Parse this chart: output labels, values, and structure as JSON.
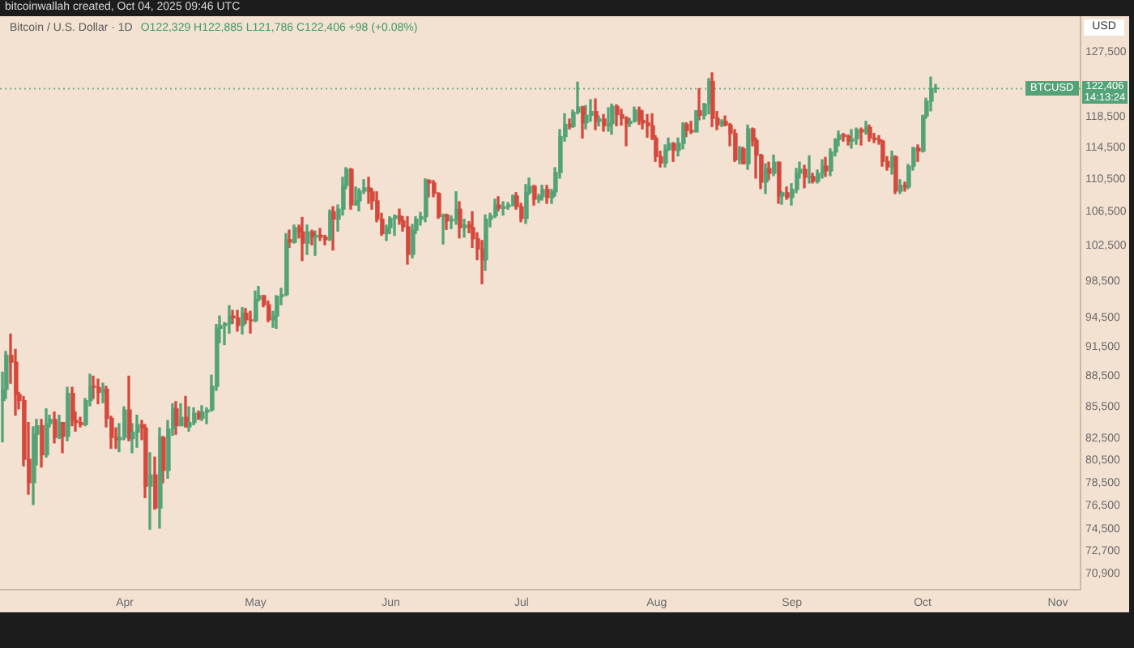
{
  "chart_data": {
    "type": "candlestick",
    "title": "Bitcoin / U.S. Dollar · 1D",
    "subtitle": "O122,329 H122,885 L121,786 C122,406 +98 (+0.08%)",
    "ylabel": "USD",
    "annotations": [
      "bitcoinwallah created, Oct 04, 2025 09:46 UTC",
      {
        "text": "BTCUSD",
        "y": 122406
      },
      "14:13:24"
    ],
    "log": "y",
    "xlim": [
      "2025-03-03T09:00",
      "2025-11-06T05:00"
    ],
    "xticks": [
      {
        "value": "2025-04-01",
        "label": "Apr"
      },
      {
        "value": "2025-05-01",
        "label": "May"
      },
      {
        "value": "2025-06-01",
        "label": "Jun"
      },
      {
        "value": "2025-07-01",
        "label": "Jul"
      },
      {
        "value": "2025-08-01",
        "label": "Aug"
      },
      {
        "value": "2025-09-01",
        "label": "Sep"
      },
      {
        "value": "2025-10-01",
        "label": "Oct"
      },
      {
        "value": "2025-11-01",
        "label": "Nov"
      }
    ],
    "ylim": [
      69600,
      132700
    ],
    "yticks": [
      {
        "value": 70900,
        "label": "70,900"
      },
      {
        "value": 72700,
        "label": "72,700"
      },
      {
        "value": 74500,
        "label": "74,500"
      },
      {
        "value": 76500,
        "label": "76,500"
      },
      {
        "value": 78500,
        "label": "78,500"
      },
      {
        "value": 80500,
        "label": "80,500"
      },
      {
        "value": 82500,
        "label": "82,500"
      },
      {
        "value": 85500,
        "label": "85,500"
      },
      {
        "value": 88500,
        "label": "88,500"
      },
      {
        "value": 91500,
        "label": "91,500"
      },
      {
        "value": 94500,
        "label": "94,500"
      },
      {
        "value": 98500,
        "label": "98,500"
      },
      {
        "value": 102500,
        "label": "102,500"
      },
      {
        "value": 106500,
        "label": "106,500"
      },
      {
        "value": 110500,
        "label": "110,500"
      },
      {
        "value": 114500,
        "label": "114,500"
      },
      {
        "value": 118500,
        "label": "118,500"
      },
      {
        "value": 127500,
        "label": "127,500"
      }
    ],
    "ref_lines": [
      {
        "axis": "y",
        "value": 122406,
        "label": "122,406",
        "color": "#54a377",
        "line_style": "dotted"
      }
    ],
    "x": [
      "2025-03-04",
      "2025-03-05",
      "2025-03-06",
      "2025-03-07",
      "2025-03-08",
      "2025-03-09",
      "2025-03-10",
      "2025-03-11",
      "2025-03-12",
      "2025-03-13",
      "2025-03-14",
      "2025-03-15",
      "2025-03-16",
      "2025-03-17",
      "2025-03-18",
      "2025-03-19",
      "2025-03-20",
      "2025-03-21",
      "2025-03-22",
      "2025-03-23",
      "2025-03-24",
      "2025-03-25",
      "2025-03-26",
      "2025-03-27",
      "2025-03-28",
      "2025-03-29",
      "2025-03-30",
      "2025-03-31",
      "2025-04-01",
      "2025-04-02",
      "2025-04-03",
      "2025-04-04",
      "2025-04-05",
      "2025-04-06",
      "2025-04-07",
      "2025-04-08",
      "2025-04-09",
      "2025-04-10",
      "2025-04-11",
      "2025-04-12",
      "2025-04-13",
      "2025-04-14",
      "2025-04-15",
      "2025-04-16",
      "2025-04-17",
      "2025-04-18",
      "2025-04-19",
      "2025-04-20",
      "2025-04-21",
      "2025-04-22",
      "2025-04-23",
      "2025-04-24",
      "2025-04-25",
      "2025-04-26",
      "2025-04-27",
      "2025-04-28",
      "2025-04-29",
      "2025-04-30",
      "2025-05-01",
      "2025-05-02",
      "2025-05-03",
      "2025-05-04",
      "2025-05-05",
      "2025-05-06",
      "2025-05-07",
      "2025-05-08",
      "2025-05-09",
      "2025-05-10",
      "2025-05-11",
      "2025-05-12",
      "2025-05-13",
      "2025-05-14",
      "2025-05-15",
      "2025-05-16",
      "2025-05-17",
      "2025-05-18",
      "2025-05-19",
      "2025-05-20",
      "2025-05-21",
      "2025-05-22",
      "2025-05-23",
      "2025-05-24",
      "2025-05-25",
      "2025-05-26",
      "2025-05-27",
      "2025-05-28",
      "2025-05-29",
      "2025-05-30",
      "2025-05-31",
      "2025-06-01",
      "2025-06-02",
      "2025-06-03",
      "2025-06-04",
      "2025-06-05",
      "2025-06-06",
      "2025-06-07",
      "2025-06-08",
      "2025-06-09",
      "2025-06-10",
      "2025-06-11",
      "2025-06-12",
      "2025-06-13",
      "2025-06-14",
      "2025-06-15",
      "2025-06-16",
      "2025-06-17",
      "2025-06-18",
      "2025-06-19",
      "2025-06-20",
      "2025-06-21",
      "2025-06-22",
      "2025-06-23",
      "2025-06-24",
      "2025-06-25",
      "2025-06-26",
      "2025-06-27",
      "2025-06-28",
      "2025-06-29",
      "2025-06-30",
      "2025-07-01",
      "2025-07-02",
      "2025-07-03",
      "2025-07-04",
      "2025-07-05",
      "2025-07-06",
      "2025-07-07",
      "2025-07-08",
      "2025-07-09",
      "2025-07-10",
      "2025-07-11",
      "2025-07-12",
      "2025-07-13",
      "2025-07-14",
      "2025-07-15",
      "2025-07-16",
      "2025-07-17",
      "2025-07-18",
      "2025-07-19",
      "2025-07-20",
      "2025-07-21",
      "2025-07-22",
      "2025-07-23",
      "2025-07-24",
      "2025-07-25",
      "2025-07-26",
      "2025-07-27",
      "2025-07-28",
      "2025-07-29",
      "2025-07-30",
      "2025-07-31",
      "2025-08-01",
      "2025-08-02",
      "2025-08-03",
      "2025-08-04",
      "2025-08-05",
      "2025-08-06",
      "2025-08-07",
      "2025-08-08",
      "2025-08-09",
      "2025-08-10",
      "2025-08-11",
      "2025-08-12",
      "2025-08-13",
      "2025-08-14",
      "2025-08-15",
      "2025-08-16",
      "2025-08-17",
      "2025-08-18",
      "2025-08-19",
      "2025-08-20",
      "2025-08-21",
      "2025-08-22",
      "2025-08-23",
      "2025-08-24",
      "2025-08-25",
      "2025-08-26",
      "2025-08-27",
      "2025-08-28",
      "2025-08-29",
      "2025-08-30",
      "2025-08-31",
      "2025-09-01",
      "2025-09-02",
      "2025-09-03",
      "2025-09-04",
      "2025-09-05",
      "2025-09-06",
      "2025-09-07",
      "2025-09-08",
      "2025-09-09",
      "2025-09-10",
      "2025-09-11",
      "2025-09-12",
      "2025-09-13",
      "2025-09-14",
      "2025-09-15",
      "2025-09-16",
      "2025-09-17",
      "2025-09-18",
      "2025-09-19",
      "2025-09-20",
      "2025-09-21",
      "2025-09-22",
      "2025-09-23",
      "2025-09-24",
      "2025-09-25",
      "2025-09-26",
      "2025-09-27",
      "2025-09-28",
      "2025-09-29",
      "2025-09-30",
      "2025-10-01",
      "2025-10-02",
      "2025-10-03",
      "2025-10-04"
    ],
    "ohlc": [
      [
        86100,
        88900,
        82200,
        87200
      ],
      [
        87200,
        91000,
        86300,
        90600
      ],
      [
        90600,
        92800,
        87800,
        89900
      ],
      [
        89900,
        91200,
        84700,
        86700
      ],
      [
        86700,
        86900,
        85300,
        86100
      ],
      [
        86100,
        86500,
        80000,
        80600
      ],
      [
        80600,
        84000,
        77500,
        78500
      ],
      [
        78500,
        83600,
        76600,
        82900
      ],
      [
        82900,
        84300,
        80100,
        83700
      ],
      [
        83700,
        84300,
        79900,
        81000
      ],
      [
        81000,
        85300,
        80800,
        83900
      ],
      [
        83900,
        84700,
        83600,
        84300
      ],
      [
        84300,
        85000,
        82100,
        82600
      ],
      [
        82600,
        84700,
        82500,
        84000
      ],
      [
        84000,
        84000,
        81200,
        82700
      ],
      [
        82700,
        87400,
        82300,
        86800
      ],
      [
        86800,
        87400,
        83700,
        84200
      ],
      [
        84200,
        85000,
        83200,
        84000
      ],
      [
        84000,
        84500,
        83600,
        83800
      ],
      [
        83800,
        86300,
        83700,
        86100
      ],
      [
        86100,
        88700,
        85600,
        87500
      ],
      [
        87500,
        88500,
        86300,
        87400
      ],
      [
        87400,
        88200,
        85800,
        86900
      ],
      [
        86900,
        87800,
        85900,
        87200
      ],
      [
        87200,
        87500,
        83600,
        84400
      ],
      [
        84400,
        84600,
        81600,
        82600
      ],
      [
        82600,
        83500,
        81600,
        82400
      ],
      [
        82400,
        83900,
        81300,
        82600
      ],
      [
        82600,
        85500,
        82400,
        85200
      ],
      [
        85200,
        88500,
        82300,
        82500
      ],
      [
        82500,
        83900,
        81200,
        83100
      ],
      [
        83100,
        84700,
        81700,
        83800
      ],
      [
        83800,
        84200,
        82400,
        83500
      ],
      [
        83500,
        83800,
        77200,
        78200
      ],
      [
        78200,
        81200,
        74500,
        79200
      ],
      [
        79200,
        80800,
        76200,
        76300
      ],
      [
        76300,
        83500,
        74600,
        82600
      ],
      [
        82600,
        82700,
        78500,
        79600
      ],
      [
        79600,
        84200,
        78900,
        83400
      ],
      [
        83400,
        85800,
        82800,
        85300
      ],
      [
        85300,
        86000,
        82900,
        83700
      ],
      [
        83700,
        85800,
        83700,
        84500
      ],
      [
        84500,
        86500,
        83600,
        83600
      ],
      [
        83600,
        85500,
        83200,
        84000
      ],
      [
        84000,
        85400,
        83800,
        84900
      ],
      [
        84900,
        85100,
        84300,
        84400
      ],
      [
        84400,
        85600,
        84200,
        85000
      ],
      [
        85000,
        85400,
        83900,
        85200
      ],
      [
        85200,
        88600,
        85100,
        87500
      ],
      [
        87500,
        93800,
        87100,
        93400
      ],
      [
        93400,
        94700,
        91900,
        93700
      ],
      [
        93700,
        94000,
        91700,
        93900
      ],
      [
        93900,
        95800,
        92900,
        94700
      ],
      [
        94700,
        95300,
        93900,
        94500
      ],
      [
        94500,
        95300,
        93100,
        93700
      ],
      [
        93700,
        95600,
        92800,
        95000
      ],
      [
        95000,
        95500,
        93900,
        94300
      ],
      [
        94300,
        95200,
        92900,
        94200
      ],
      [
        94200,
        97400,
        94100,
        96500
      ],
      [
        96500,
        97900,
        96300,
        96900
      ],
      [
        96900,
        96900,
        95700,
        95900
      ],
      [
        95900,
        96300,
        94100,
        94300
      ],
      [
        94300,
        95200,
        93500,
        94700
      ],
      [
        94700,
        96900,
        93400,
        96800
      ],
      [
        96800,
        97700,
        95900,
        97000
      ],
      [
        97000,
        103900,
        96900,
        103200
      ],
      [
        103200,
        104300,
        102300,
        102900
      ],
      [
        102900,
        104900,
        102800,
        104600
      ],
      [
        104600,
        104900,
        103400,
        104100
      ],
      [
        104100,
        105800,
        100800,
        102800
      ],
      [
        102800,
        104900,
        101500,
        104100
      ],
      [
        104100,
        104300,
        102600,
        103500
      ],
      [
        103500,
        104200,
        101400,
        103700
      ],
      [
        103700,
        104500,
        103100,
        103500
      ],
      [
        103500,
        103700,
        102600,
        103200
      ],
      [
        103200,
        106700,
        103100,
        106500
      ],
      [
        106500,
        107100,
        102000,
        105600
      ],
      [
        105600,
        107300,
        104200,
        106800
      ],
      [
        106800,
        110700,
        106100,
        109700
      ],
      [
        109700,
        111900,
        109300,
        111700
      ],
      [
        111700,
        111800,
        106800,
        107300
      ],
      [
        107300,
        109500,
        107300,
        107800
      ],
      [
        107800,
        109300,
        106600,
        109000
      ],
      [
        109000,
        110400,
        108700,
        109400
      ],
      [
        109400,
        110700,
        107500,
        108900
      ],
      [
        108900,
        109300,
        106800,
        107800
      ],
      [
        107800,
        108900,
        105300,
        105600
      ],
      [
        105600,
        106300,
        103700,
        103900
      ],
      [
        103900,
        104900,
        103100,
        104600
      ],
      [
        104600,
        105900,
        103900,
        105700
      ],
      [
        105700,
        106100,
        103700,
        106000
      ],
      [
        106000,
        106800,
        105000,
        105400
      ],
      [
        105400,
        105900,
        104200,
        104700
      ],
      [
        104700,
        105900,
        100400,
        101500
      ],
      [
        101500,
        105000,
        101100,
        104300
      ],
      [
        104300,
        105900,
        103900,
        105600
      ],
      [
        105600,
        106400,
        104900,
        105900
      ],
      [
        105900,
        110500,
        105300,
        110300
      ],
      [
        110300,
        110400,
        108300,
        110000
      ],
      [
        110000,
        110300,
        108300,
        108700
      ],
      [
        108700,
        108800,
        105700,
        105900
      ],
      [
        105900,
        106200,
        102700,
        106100
      ],
      [
        106100,
        106200,
        104400,
        105400
      ],
      [
        105400,
        106000,
        104500,
        105600
      ],
      [
        105600,
        108900,
        105000,
        106800
      ],
      [
        106800,
        107700,
        103400,
        104600
      ],
      [
        104600,
        105600,
        103500,
        104900
      ],
      [
        104900,
        105300,
        104000,
        104600
      ],
      [
        104600,
        106500,
        102300,
        103300
      ],
      [
        103300,
        104000,
        100900,
        102100
      ],
      [
        102100,
        103100,
        98200,
        100900
      ],
      [
        100900,
        106100,
        99700,
        105600
      ],
      [
        105600,
        106300,
        104700,
        106000
      ],
      [
        106000,
        108000,
        105800,
        107300
      ],
      [
        107300,
        108300,
        106600,
        106900
      ],
      [
        106900,
        107700,
        106100,
        107100
      ],
      [
        107100,
        107600,
        106800,
        107300
      ],
      [
        107300,
        108500,
        107200,
        108400
      ],
      [
        108400,
        108800,
        106800,
        107100
      ],
      [
        107100,
        107500,
        105300,
        105700
      ],
      [
        105700,
        109800,
        105100,
        108800
      ],
      [
        108800,
        110600,
        108600,
        109600
      ],
      [
        109600,
        109700,
        107300,
        108000
      ],
      [
        108000,
        108600,
        107600,
        108300
      ],
      [
        108300,
        109700,
        107900,
        109200
      ],
      [
        109200,
        109700,
        107500,
        108200
      ],
      [
        108200,
        109200,
        107500,
        108900
      ],
      [
        108900,
        111900,
        108400,
        111300
      ],
      [
        111300,
        116800,
        110600,
        115900
      ],
      [
        115900,
        118900,
        115300,
        117500
      ],
      [
        117500,
        118200,
        116900,
        117200
      ],
      [
        117200,
        119400,
        117100,
        119100
      ],
      [
        119100,
        123200,
        118900,
        119800
      ],
      [
        119800,
        119900,
        115700,
        117700
      ],
      [
        117700,
        120000,
        116900,
        118700
      ],
      [
        118700,
        120800,
        117900,
        119200
      ],
      [
        119200,
        120900,
        116800,
        117900
      ],
      [
        117900,
        118600,
        117300,
        118200
      ],
      [
        118200,
        118800,
        116600,
        117300
      ],
      [
        117300,
        119700,
        116600,
        117600
      ],
      [
        117600,
        120200,
        116200,
        119900
      ],
      [
        119900,
        120100,
        117300,
        118800
      ],
      [
        118800,
        119500,
        117400,
        118300
      ],
      [
        118300,
        118500,
        114700,
        117600
      ],
      [
        117600,
        118300,
        117200,
        117900
      ],
      [
        117900,
        119800,
        117800,
        119400
      ],
      [
        119400,
        119800,
        117500,
        118000
      ],
      [
        118000,
        119300,
        116900,
        117700
      ],
      [
        117700,
        118800,
        115800,
        117300
      ],
      [
        117300,
        118900,
        115500,
        115700
      ],
      [
        115700,
        116000,
        112700,
        113300
      ],
      [
        113300,
        114000,
        112000,
        112500
      ],
      [
        112500,
        114800,
        112000,
        114200
      ],
      [
        114200,
        115700,
        114100,
        115000
      ],
      [
        115000,
        115100,
        112700,
        114100
      ],
      [
        114100,
        115700,
        113400,
        115000
      ],
      [
        115000,
        117700,
        114300,
        117500
      ],
      [
        117500,
        117700,
        115900,
        116700
      ],
      [
        116700,
        117900,
        116300,
        116500
      ],
      [
        116500,
        119300,
        116500,
        119300
      ],
      [
        119300,
        122300,
        118100,
        118700
      ],
      [
        118700,
        120300,
        118200,
        120200
      ],
      [
        120200,
        123700,
        118900,
        123300
      ],
      [
        123300,
        124500,
        117200,
        118300
      ],
      [
        118300,
        119200,
        116800,
        117400
      ],
      [
        117400,
        118100,
        117200,
        117900
      ],
      [
        117900,
        118600,
        117300,
        117400
      ],
      [
        117400,
        117600,
        114700,
        116300
      ],
      [
        116300,
        116800,
        112700,
        112900
      ],
      [
        112900,
        114600,
        112400,
        114300
      ],
      [
        114300,
        114500,
        112400,
        112400
      ],
      [
        112400,
        117400,
        111700,
        116900
      ],
      [
        116900,
        117000,
        114700,
        115400
      ],
      [
        115400,
        115700,
        110600,
        113500
      ],
      [
        113500,
        113600,
        109300,
        110100
      ],
      [
        110100,
        112400,
        108700,
        111800
      ],
      [
        111800,
        112600,
        110400,
        111200
      ],
      [
        111200,
        113500,
        110900,
        112600
      ],
      [
        112600,
        112600,
        107500,
        108400
      ],
      [
        108400,
        108900,
        107400,
        108800
      ],
      [
        108800,
        109500,
        108000,
        108200
      ],
      [
        108200,
        109900,
        107300,
        109200
      ],
      [
        109200,
        111800,
        108800,
        111200
      ],
      [
        111200,
        112600,
        110600,
        111700
      ],
      [
        111700,
        112200,
        109400,
        110700
      ],
      [
        110700,
        113400,
        110000,
        110800
      ],
      [
        110800,
        111200,
        110000,
        110200
      ],
      [
        110200,
        111600,
        110000,
        111200
      ],
      [
        111200,
        112900,
        110600,
        112100
      ],
      [
        112100,
        113200,
        110800,
        111500
      ],
      [
        111500,
        114300,
        110900,
        113900
      ],
      [
        113900,
        115600,
        113400,
        115500
      ],
      [
        115500,
        116600,
        114700,
        116100
      ],
      [
        116100,
        116300,
        115300,
        115900
      ],
      [
        115900,
        116100,
        114800,
        115300
      ],
      [
        115300,
        116800,
        114400,
        115600
      ],
      [
        115600,
        117000,
        114900,
        116800
      ],
      [
        116800,
        117000,
        114800,
        116500
      ],
      [
        116500,
        117900,
        116200,
        117100
      ],
      [
        117100,
        117400,
        115300,
        115700
      ],
      [
        115700,
        116300,
        115100,
        115500
      ],
      [
        115500,
        116000,
        114900,
        115300
      ],
      [
        115300,
        115400,
        112100,
        112700
      ],
      [
        112700,
        113300,
        111600,
        112000
      ],
      [
        112000,
        114000,
        111100,
        113300
      ],
      [
        113300,
        113400,
        108700,
        109000
      ],
      [
        109000,
        110400,
        108700,
        109700
      ],
      [
        109700,
        110100,
        109000,
        109500
      ],
      [
        109500,
        112300,
        109300,
        112100
      ],
      [
        112100,
        114500,
        111600,
        114400
      ],
      [
        114400,
        114800,
        112700,
        114000
      ],
      [
        114000,
        118700,
        113900,
        118600
      ],
      [
        118600,
        121000,
        118300,
        120600
      ],
      [
        120600,
        123900,
        119300,
        122329
      ],
      [
        122329,
        122885,
        121786,
        122406
      ]
    ],
    "colors": [
      "#54a377",
      "#54a377",
      "#d5493d",
      "#d5493d",
      "#d5493d",
      "#d5493d",
      "#d5493d",
      "#54a377",
      "#54a377",
      "#d5493d",
      "#54a377",
      "#54a377",
      "#d5493d",
      "#54a377",
      "#d5493d",
      "#54a377",
      "#d5493d",
      "#d5493d",
      "#d5493d",
      "#54a377",
      "#54a377",
      "#d5493d",
      "#d5493d",
      "#54a377",
      "#d5493d",
      "#d5493d",
      "#d5493d",
      "#54a377",
      "#54a377",
      "#d5493d",
      "#54a377",
      "#54a377",
      "#d5493d",
      "#d5493d",
      "#54a377",
      "#d5493d",
      "#54a377",
      "#d5493d",
      "#54a377",
      "#54a377",
      "#d5493d",
      "#54a377",
      "#d5493d",
      "#54a377",
      "#54a377",
      "#d5493d",
      "#54a377",
      "#54a377",
      "#54a377",
      "#54a377",
      "#54a377",
      "#54a377",
      "#54a377",
      "#d5493d",
      "#d5493d",
      "#54a377",
      "#d5493d",
      "#d5493d",
      "#54a377",
      "#54a377",
      "#d5493d",
      "#d5493d",
      "#54a377",
      "#54a377",
      "#54a377",
      "#54a377",
      "#d5493d",
      "#54a377",
      "#d5493d",
      "#d5493d",
      "#54a377",
      "#d5493d",
      "#54a377",
      "#d5493d",
      "#d5493d",
      "#54a377",
      "#d5493d",
      "#54a377",
      "#54a377",
      "#54a377",
      "#d5493d",
      "#54a377",
      "#54a377",
      "#54a377",
      "#d5493d",
      "#d5493d",
      "#d5493d",
      "#d5493d",
      "#54a377",
      "#54a377",
      "#54a377",
      "#d5493d",
      "#d5493d",
      "#d5493d",
      "#54a377",
      "#54a377",
      "#54a377",
      "#54a377",
      "#d5493d",
      "#d5493d",
      "#d5493d",
      "#54a377",
      "#d5493d",
      "#54a377",
      "#54a377",
      "#d5493d",
      "#54a377",
      "#d5493d",
      "#d5493d",
      "#d5493d",
      "#d5493d",
      "#54a377",
      "#54a377",
      "#54a377",
      "#d5493d",
      "#54a377",
      "#54a377",
      "#54a377",
      "#d5493d",
      "#d5493d",
      "#54a377",
      "#54a377",
      "#d5493d",
      "#54a377",
      "#54a377",
      "#d5493d",
      "#54a377",
      "#54a377",
      "#54a377",
      "#54a377",
      "#d5493d",
      "#54a377",
      "#54a377",
      "#d5493d",
      "#54a377",
      "#54a377",
      "#d5493d",
      "#54a377",
      "#d5493d",
      "#54a377",
      "#54a377",
      "#d5493d",
      "#d5493d",
      "#d5493d",
      "#54a377",
      "#54a377",
      "#d5493d",
      "#d5493d",
      "#d5493d",
      "#d5493d",
      "#d5493d",
      "#d5493d",
      "#54a377",
      "#54a377",
      "#d5493d",
      "#54a377",
      "#54a377",
      "#d5493d",
      "#d5493d",
      "#54a377",
      "#d5493d",
      "#54a377",
      "#54a377",
      "#d5493d",
      "#d5493d",
      "#54a377",
      "#d5493d",
      "#d5493d",
      "#d5493d",
      "#54a377",
      "#d5493d",
      "#54a377",
      "#d5493d",
      "#d5493d",
      "#d5493d",
      "#54a377",
      "#d5493d",
      "#54a377",
      "#d5493d",
      "#54a377",
      "#d5493d",
      "#54a377",
      "#54a377",
      "#54a377",
      "#d5493d",
      "#54a377",
      "#d5493d",
      "#54a377",
      "#54a377",
      "#d5493d",
      "#54a377",
      "#54a377",
      "#54a377",
      "#d5493d",
      "#d5493d",
      "#54a377",
      "#54a377",
      "#d5493d",
      "#54a377",
      "#d5493d",
      "#d5493d",
      "#d5493d",
      "#d5493d",
      "#d5493d",
      "#54a377",
      "#d5493d",
      "#54a377",
      "#d5493d",
      "#54a377",
      "#54a377",
      "#d5493d",
      "#54a377",
      "#54a377",
      "#54a377",
      "#54a377"
    ]
  }
}
